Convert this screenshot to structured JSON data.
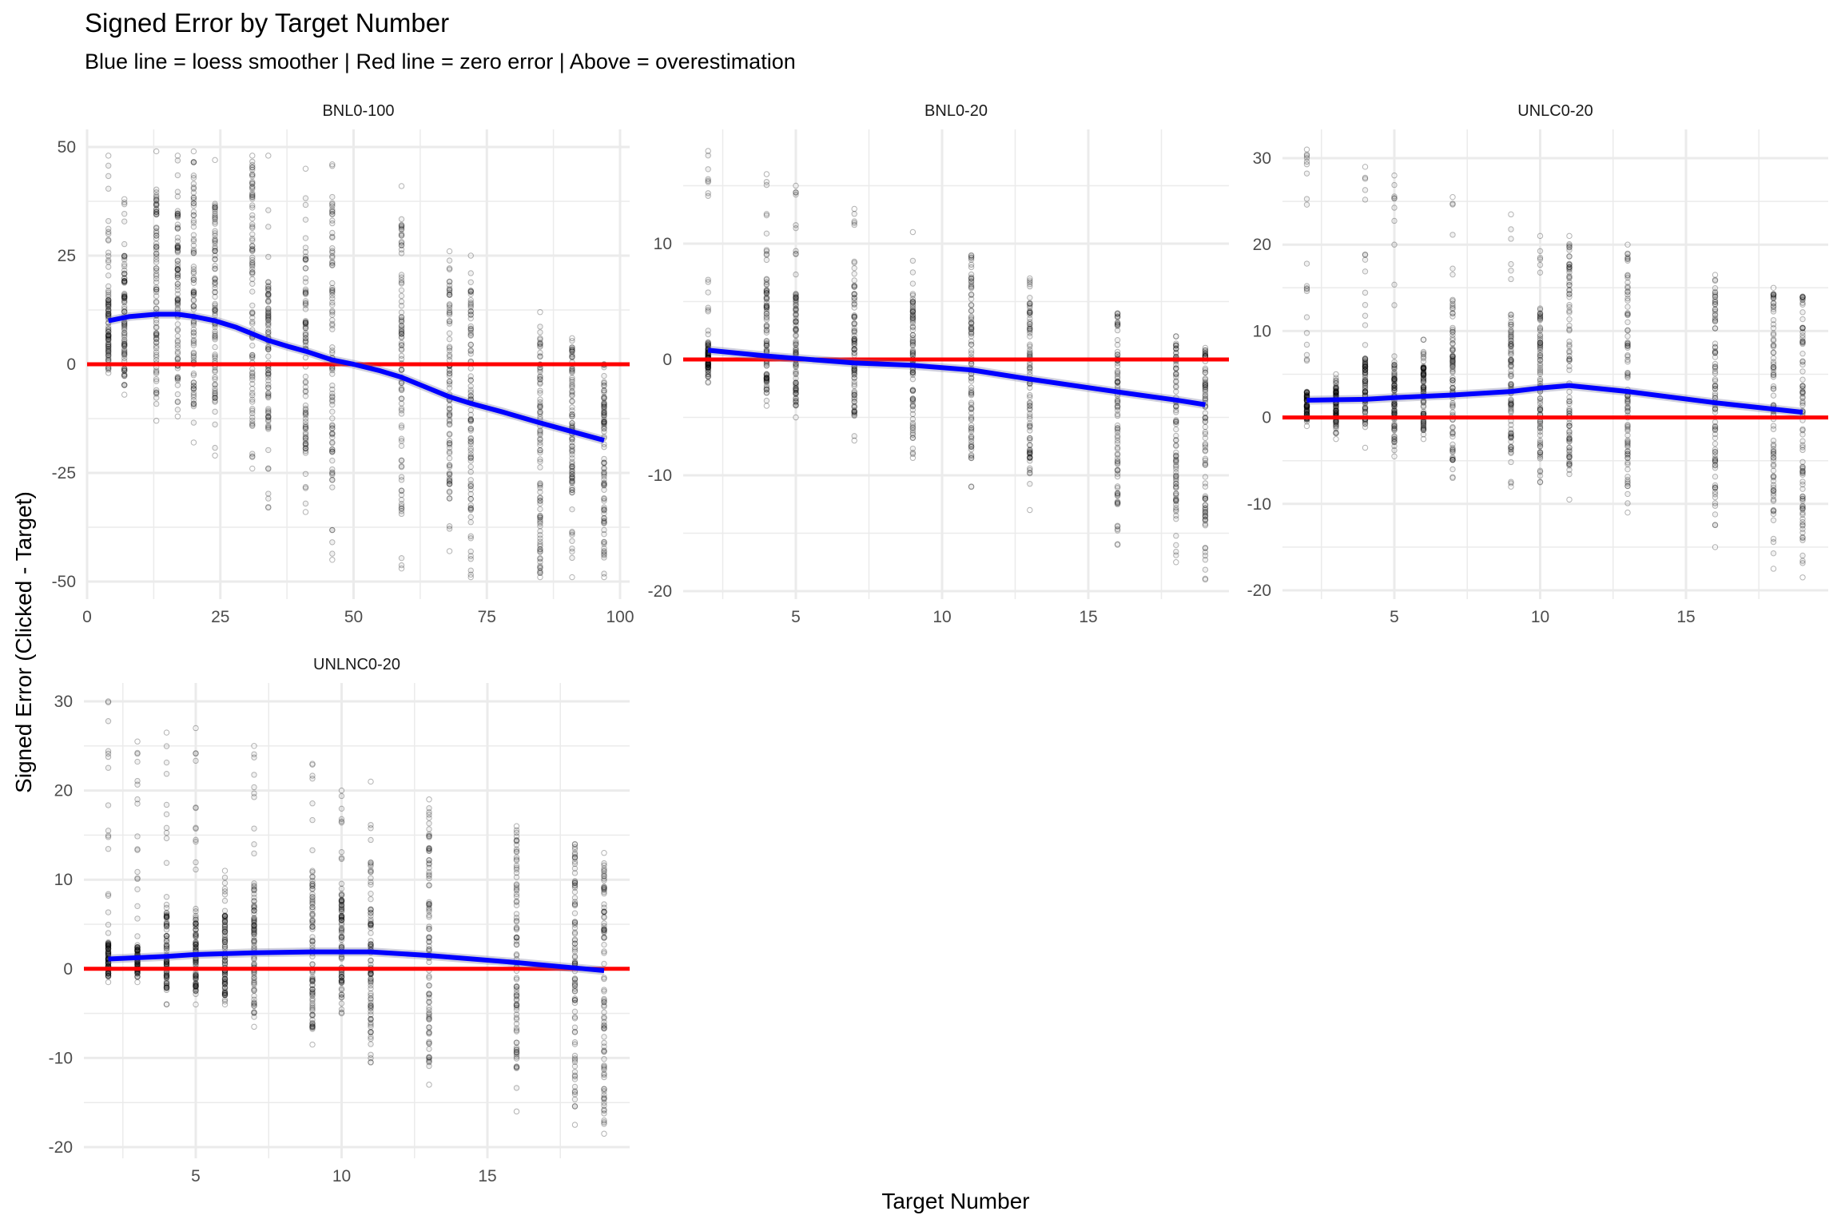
{
  "title": "Signed Error by Target Number",
  "subtitle": "Blue line = loess smoother | Red line = zero error | Above = overestimation",
  "chart_data": {
    "type": "scatter",
    "title": "Signed Error by Target Number",
    "subtitle": "Blue line = loess smoother | Red line = zero error | Above = overestimation",
    "xlabel": "Target Number",
    "ylabel": "Signed Error (Clicked - Target)",
    "grid": true,
    "colors": {
      "points": "#000000",
      "smoother": "#0000ff",
      "zero_line": "#ff0000",
      "grid": "#ebebeb"
    },
    "reference_line": {
      "y": 0,
      "label": "zero error"
    },
    "facets": [
      {
        "name": "BNL0-100",
        "xlim": [
          0,
          100
        ],
        "ylim": [
          -50,
          50
        ],
        "x_ticks": [
          0,
          25,
          50,
          75,
          100
        ],
        "x_tick_labels": [
          "0",
          "25",
          "50",
          "75",
          "100"
        ],
        "y_ticks": [
          -50,
          -25,
          0,
          25,
          50
        ],
        "y_tick_labels": [
          "-50",
          "-25",
          "0",
          "25",
          "50"
        ],
        "point_columns": [
          {
            "x": 4,
            "min": -2,
            "max": 48,
            "core": [
              -1,
              17
            ]
          },
          {
            "x": 7,
            "min": -7,
            "max": 38,
            "core": [
              -5,
              25
            ]
          },
          {
            "x": 13,
            "min": -13,
            "max": 49,
            "core": [
              -8,
              40
            ]
          },
          {
            "x": 17,
            "min": -12,
            "max": 48,
            "core": [
              -5,
              35
            ]
          },
          {
            "x": 20,
            "min": -18,
            "max": 49,
            "core": [
              -10,
              45
            ]
          },
          {
            "x": 24,
            "min": -21,
            "max": 47,
            "core": [
              -8,
              38
            ]
          },
          {
            "x": 31,
            "min": -24,
            "max": 48,
            "core": [
              -22,
              46
            ]
          },
          {
            "x": 34,
            "min": -33,
            "max": 48,
            "core": [
              -15,
              20
            ]
          },
          {
            "x": 41,
            "min": -34,
            "max": 45,
            "core": [
              -20,
              30
            ]
          },
          {
            "x": 46,
            "min": -45,
            "max": 46,
            "core": [
              -28,
              40
            ]
          },
          {
            "x": 59,
            "min": -47,
            "max": 41,
            "core": [
              -37,
              34
            ]
          },
          {
            "x": 68,
            "min": -43,
            "max": 26,
            "core": [
              -31,
              21
            ]
          },
          {
            "x": 72,
            "min": -49,
            "max": 25,
            "core": [
              -38,
              19
            ]
          },
          {
            "x": 85,
            "min": -49,
            "max": 12,
            "core": [
              -45,
              9
            ]
          },
          {
            "x": 91,
            "min": -49,
            "max": 6,
            "core": [
              -30,
              4
            ]
          },
          {
            "x": 97,
            "min": -49,
            "max": 0,
            "core": [
              -44,
              0
            ]
          }
        ],
        "smoother": {
          "x": [
            4,
            8,
            13,
            17,
            20,
            24,
            28,
            31,
            34,
            38,
            41,
            46,
            50,
            55,
            59,
            64,
            68,
            72,
            78,
            85,
            91,
            97
          ],
          "y": [
            10,
            11,
            11.5,
            11.5,
            11,
            10,
            8.5,
            7,
            5.5,
            4,
            3,
            1,
            0,
            -1.5,
            -3,
            -5.5,
            -7.5,
            -9,
            -11,
            -13.5,
            -15.5,
            -17.5
          ]
        }
      },
      {
        "name": "BNL0-20",
        "xlim": [
          1.5,
          19.5
        ],
        "ylim": [
          -20,
          18
        ],
        "x_ticks": [
          5,
          10,
          15
        ],
        "x_tick_labels": [
          "5",
          "10",
          "15"
        ],
        "y_ticks": [
          -20,
          -10,
          0,
          10
        ],
        "y_tick_labels": [
          "-20",
          "-10",
          "0",
          "10"
        ],
        "point_columns": [
          {
            "x": 2,
            "min": -2,
            "max": 18,
            "core": [
              -1.5,
              1.5
            ]
          },
          {
            "x": 4,
            "min": -4,
            "max": 16,
            "core": [
              -3,
              7
            ]
          },
          {
            "x": 5,
            "min": -5,
            "max": 15,
            "core": [
              -4,
              6
            ]
          },
          {
            "x": 7,
            "min": -7,
            "max": 13,
            "core": [
              -5,
              7
            ]
          },
          {
            "x": 9,
            "min": -8.5,
            "max": 11,
            "core": [
              -7,
              6
            ]
          },
          {
            "x": 11,
            "min": -11,
            "max": 9,
            "core": [
              -9,
              9
            ]
          },
          {
            "x": 13,
            "min": -13,
            "max": 7,
            "core": [
              -10,
              7
            ]
          },
          {
            "x": 16,
            "min": -16,
            "max": 4,
            "core": [
              -12.5,
              4
            ]
          },
          {
            "x": 18,
            "min": -17.5,
            "max": 2,
            "core": [
              -14,
              2
            ]
          },
          {
            "x": 19,
            "min": -19,
            "max": 1,
            "core": [
              -14.5,
              1
            ]
          }
        ],
        "smoother": {
          "x": [
            2,
            4,
            5,
            7,
            9,
            11,
            13,
            16,
            18,
            19
          ],
          "y": [
            0.8,
            0.3,
            0.1,
            -0.3,
            -0.5,
            -0.9,
            -1.7,
            -2.8,
            -3.5,
            -3.9
          ]
        }
      },
      {
        "name": "UNLC0-20",
        "xlim": [
          1.5,
          19.5
        ],
        "ylim": [
          -20,
          31
        ],
        "x_ticks": [
          5,
          10,
          15
        ],
        "x_tick_labels": [
          "5",
          "10",
          "15"
        ],
        "y_ticks": [
          -20,
          -10,
          0,
          10,
          20,
          30
        ],
        "y_tick_labels": [
          "-20",
          "-10",
          "0",
          "10",
          "20",
          "30"
        ],
        "point_columns": [
          {
            "x": 2,
            "min": -1,
            "max": 31,
            "core": [
              -0.5,
              3
            ]
          },
          {
            "x": 3,
            "min": -2.5,
            "max": 5,
            "core": [
              -1,
              3.5
            ]
          },
          {
            "x": 4,
            "min": -3.5,
            "max": 29,
            "core": [
              -1,
              7
            ]
          },
          {
            "x": 5,
            "min": -4.5,
            "max": 28,
            "core": [
              -3,
              6.5
            ]
          },
          {
            "x": 6,
            "min": -2.5,
            "max": 9,
            "core": [
              -1.5,
              6
            ]
          },
          {
            "x": 7,
            "min": -7,
            "max": 25.5,
            "core": [
              -5,
              14
            ]
          },
          {
            "x": 9,
            "min": -8,
            "max": 23.5,
            "core": [
              -5,
              12
            ]
          },
          {
            "x": 10,
            "min": -7.5,
            "max": 21,
            "core": [
              -5,
              13
            ]
          },
          {
            "x": 11,
            "min": -9.5,
            "max": 21,
            "core": [
              -7,
              20
            ]
          },
          {
            "x": 13,
            "min": -11,
            "max": 20,
            "core": [
              -9,
              20
            ]
          },
          {
            "x": 16,
            "min": -15,
            "max": 16.5,
            "core": [
              -10,
              16
            ]
          },
          {
            "x": 18,
            "min": -17.5,
            "max": 15,
            "core": [
              -12,
              15
            ]
          },
          {
            "x": 19,
            "min": -18.5,
            "max": 14,
            "core": [
              -14,
              14
            ]
          }
        ],
        "smoother": {
          "x": [
            2,
            4,
            5,
            7,
            9,
            10,
            11,
            13,
            16,
            19
          ],
          "y": [
            2.0,
            2.1,
            2.3,
            2.6,
            3.0,
            3.4,
            3.7,
            3.0,
            1.7,
            0.6
          ]
        }
      },
      {
        "name": "UNLNC0-20",
        "xlim": [
          1.5,
          19.5
        ],
        "ylim": [
          -20,
          31
        ],
        "x_ticks": [
          5,
          10,
          15
        ],
        "x_tick_labels": [
          "5",
          "10",
          "15"
        ],
        "y_ticks": [
          -20,
          -10,
          0,
          10,
          20,
          30
        ],
        "y_tick_labels": [
          "-20",
          "-10",
          "0",
          "10",
          "20",
          "30"
        ],
        "point_columns": [
          {
            "x": 2,
            "min": -1.5,
            "max": 30,
            "core": [
              -1,
              3
            ]
          },
          {
            "x": 3,
            "min": -1.5,
            "max": 25.5,
            "core": [
              -1,
              2.5
            ]
          },
          {
            "x": 4,
            "min": -4,
            "max": 26.5,
            "core": [
              -2.5,
              6.5
            ]
          },
          {
            "x": 5,
            "min": -4,
            "max": 27,
            "core": [
              -3,
              7
            ]
          },
          {
            "x": 6,
            "min": -4,
            "max": 11,
            "core": [
              -3,
              6
            ]
          },
          {
            "x": 7,
            "min": -6.5,
            "max": 25,
            "core": [
              -5,
              10
            ]
          },
          {
            "x": 9,
            "min": -8.5,
            "max": 23,
            "core": [
              -7,
              11
            ]
          },
          {
            "x": 10,
            "min": -5,
            "max": 20,
            "core": [
              -3,
              9
            ]
          },
          {
            "x": 11,
            "min": -10.5,
            "max": 21,
            "core": [
              -8,
              12
            ]
          },
          {
            "x": 13,
            "min": -13,
            "max": 19,
            "core": [
              -11,
              19
            ]
          },
          {
            "x": 16,
            "min": -16,
            "max": 16,
            "core": [
              -12,
              16
            ]
          },
          {
            "x": 18,
            "min": -17.5,
            "max": 14,
            "core": [
              -14,
              14
            ]
          },
          {
            "x": 19,
            "min": -18.5,
            "max": 13,
            "core": [
              -16,
              13
            ]
          }
        ],
        "smoother": {
          "x": [
            2,
            4,
            5,
            7,
            9,
            10,
            11,
            13,
            16,
            18,
            19
          ],
          "y": [
            1.1,
            1.4,
            1.6,
            1.8,
            1.9,
            1.9,
            1.9,
            1.5,
            0.7,
            0.1,
            -0.2
          ]
        }
      }
    ]
  }
}
